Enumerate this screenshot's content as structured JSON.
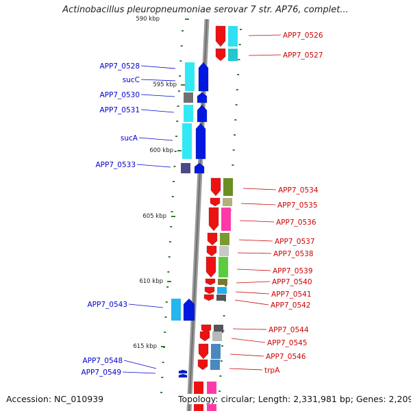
{
  "title": "Actinobacillus pleuropneumoniae serovar 7 str. AP76, complet...",
  "footer": {
    "accession": "Accession: NC_010939",
    "summary": "Topology: circular; Length: 2,331,981 bp; Genes: 2,209"
  },
  "ticks": [
    "590 kbp",
    "595 kbp",
    "600 kbp",
    "605 kbp",
    "610 kbp",
    "615 kbp"
  ],
  "genes_left": [
    "APP7_0528",
    "sucC",
    "APP7_0530",
    "APP7_0531",
    "sucA",
    "APP7_0533",
    "APP7_0543",
    "APP7_0548",
    "APP7_0549"
  ],
  "genes_right": [
    "APP7_0526",
    "APP7_0527",
    "APP7_0534",
    "APP7_0535",
    "APP7_0536",
    "APP7_0537",
    "APP7_0538",
    "APP7_0539",
    "APP7_0540",
    "APP7_0541",
    "APP7_0542",
    "APP7_0544",
    "APP7_0545",
    "APP7_0546",
    "trpA"
  ],
  "colors": {
    "forward_strand": "#0000ee",
    "reverse_strand": "#ee0000",
    "backbone": "#808080",
    "tick_mark": "#2e7d32"
  }
}
